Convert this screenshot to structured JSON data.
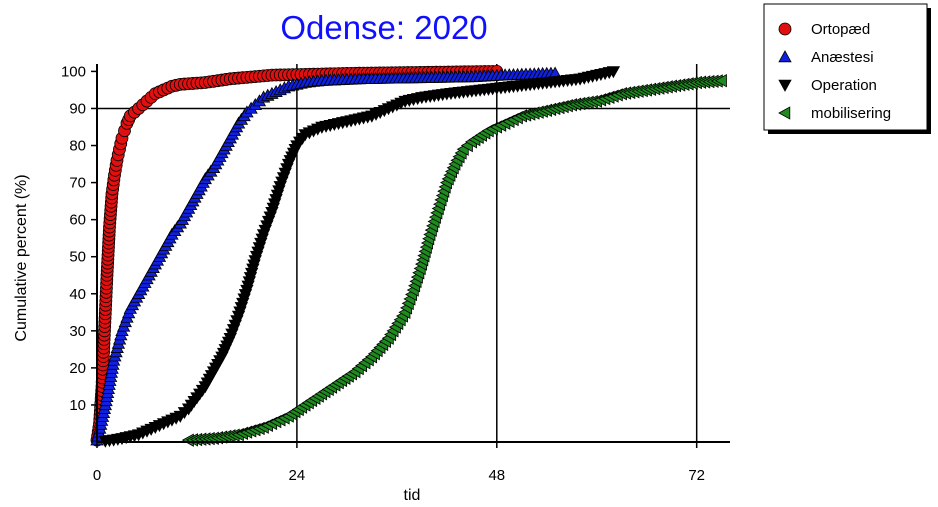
{
  "chart_data": {
    "type": "scatter",
    "title": "Odense: 2020",
    "xlabel": "tid",
    "ylabel": "Cumulative percent (%)",
    "xlim": [
      0,
      76
    ],
    "ylim": [
      0,
      102
    ],
    "x_ticks": [
      0,
      24,
      48,
      72
    ],
    "y_ticks": [
      10,
      20,
      30,
      40,
      50,
      60,
      70,
      80,
      90,
      100
    ],
    "grid_x": [
      24,
      48,
      72
    ],
    "reference_line_y": 90,
    "legend_position": "top-right, outside plot",
    "colors": {
      "title": "#1010ff",
      "Ortopæd": "#e01010",
      "Anæstesi": "#1020e0",
      "Operation": "#000000",
      "mobilisering": "#1f8a1f"
    },
    "series": [
      {
        "name": "Ortopæd",
        "marker": "circle",
        "points": [
          [
            0,
            0.5
          ],
          [
            0.3,
            5
          ],
          [
            0.6,
            15
          ],
          [
            0.9,
            30
          ],
          [
            1.2,
            45
          ],
          [
            1.5,
            58
          ],
          [
            1.8,
            67
          ],
          [
            2.1,
            72
          ],
          [
            2.4,
            76
          ],
          [
            2.7,
            79
          ],
          [
            3,
            82
          ],
          [
            3.3,
            84
          ],
          [
            3.6,
            86
          ],
          [
            4,
            88
          ],
          [
            4.5,
            89
          ],
          [
            5,
            90
          ],
          [
            5.5,
            91
          ],
          [
            6,
            92
          ],
          [
            6.5,
            93
          ],
          [
            7,
            94
          ],
          [
            7.5,
            94.5
          ],
          [
            8,
            95
          ],
          [
            9,
            96
          ],
          [
            10,
            96.5
          ],
          [
            13,
            97
          ],
          [
            16,
            98
          ],
          [
            21,
            99
          ],
          [
            31,
            99.5
          ],
          [
            48,
            100
          ]
        ]
      },
      {
        "name": "Anæstesi",
        "marker": "triangle-up",
        "points": [
          [
            0,
            0.5
          ],
          [
            1,
            10
          ],
          [
            2,
            22
          ],
          [
            3,
            30
          ],
          [
            4,
            36
          ],
          [
            5,
            40
          ],
          [
            6,
            44
          ],
          [
            7,
            48
          ],
          [
            8,
            52
          ],
          [
            9,
            56
          ],
          [
            10,
            59
          ],
          [
            11,
            63
          ],
          [
            12,
            67
          ],
          [
            13,
            71
          ],
          [
            14,
            74
          ],
          [
            15,
            78
          ],
          [
            16,
            82
          ],
          [
            17,
            86
          ],
          [
            18,
            89
          ],
          [
            19,
            91
          ],
          [
            20,
            93
          ],
          [
            21,
            94
          ],
          [
            22,
            95
          ],
          [
            23,
            96
          ],
          [
            25,
            97
          ],
          [
            27,
            97.5
          ],
          [
            32,
            98
          ],
          [
            45,
            98.5
          ],
          [
            49,
            99
          ],
          [
            55,
            99.5
          ]
        ]
      },
      {
        "name": "Operation",
        "marker": "triangle-down",
        "points": [
          [
            1,
            0.3
          ],
          [
            2,
            0.6
          ],
          [
            3,
            1
          ],
          [
            4,
            1.5
          ],
          [
            5,
            2
          ],
          [
            6,
            3
          ],
          [
            7,
            4
          ],
          [
            8,
            5
          ],
          [
            9,
            6
          ],
          [
            10,
            7
          ],
          [
            11,
            9
          ],
          [
            12,
            12
          ],
          [
            13,
            15
          ],
          [
            14,
            19
          ],
          [
            15,
            23
          ],
          [
            16,
            28
          ],
          [
            17,
            34
          ],
          [
            18,
            41
          ],
          [
            19,
            49
          ],
          [
            20,
            56
          ],
          [
            21,
            62
          ],
          [
            22,
            69
          ],
          [
            23,
            75
          ],
          [
            24,
            80
          ],
          [
            25,
            83
          ],
          [
            27,
            85
          ],
          [
            29,
            86
          ],
          [
            31,
            87
          ],
          [
            33,
            88
          ],
          [
            35,
            90
          ],
          [
            37,
            92
          ],
          [
            39,
            93
          ],
          [
            42,
            94
          ],
          [
            46,
            95
          ],
          [
            50,
            96
          ],
          [
            54,
            97
          ],
          [
            58,
            98
          ],
          [
            61,
            99.5
          ],
          [
            62,
            100
          ]
        ]
      },
      {
        "name": "mobilisering",
        "marker": "triangle-left",
        "points": [
          [
            11,
            0.5
          ],
          [
            14,
            1
          ],
          [
            17,
            2
          ],
          [
            20,
            4
          ],
          [
            23,
            7
          ],
          [
            25,
            10
          ],
          [
            27,
            13
          ],
          [
            29,
            16
          ],
          [
            31,
            19
          ],
          [
            33,
            23
          ],
          [
            35,
            28
          ],
          [
            37,
            35
          ],
          [
            38,
            41
          ],
          [
            39,
            48
          ],
          [
            40,
            56
          ],
          [
            41,
            63
          ],
          [
            42,
            70
          ],
          [
            43,
            75
          ],
          [
            44,
            79
          ],
          [
            45,
            81
          ],
          [
            47,
            84
          ],
          [
            49,
            86
          ],
          [
            51,
            88
          ],
          [
            53,
            89
          ],
          [
            55,
            90
          ],
          [
            57,
            91
          ],
          [
            60,
            92
          ],
          [
            63,
            94
          ],
          [
            66,
            95
          ],
          [
            69,
            96
          ],
          [
            72,
            97
          ],
          [
            75,
            97.5
          ]
        ]
      }
    ]
  }
}
